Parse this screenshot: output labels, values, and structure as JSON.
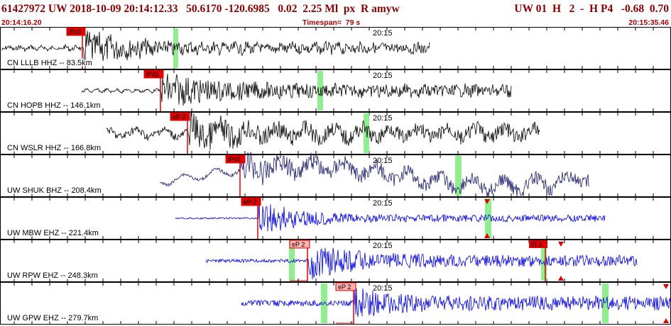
{
  "header": {
    "event_line": "61427972 UW 2018-10-09 20:14:12.33   50.6170 -120.6985   0.02  2.25 Ml  px  R amyw",
    "event_right": "UW 01  H   2  -  H P4   -0.68  0.70",
    "start_time": "20:14:16.20",
    "timespan": "Timespan=  79 s",
    "end_time": "20:15:35.46"
  },
  "minute_label": "20:15",
  "colors": {
    "header_text": "#8b0000",
    "pick_fill": "#e00000",
    "pick_light": "#ffb0b0",
    "window_bar": "#90ee90",
    "trace_black": "#000000",
    "trace_blue": "#0000e0",
    "triangle": "#e00000"
  },
  "traces": [
    {
      "label": "CN LLLB HHZ -- 83.5km",
      "color": "black",
      "pick": "iPc0",
      "pick_style": "solid"
    },
    {
      "label": "CN HOPB HHZ -- 146.1km",
      "color": "black",
      "pick": "iPd1",
      "pick_style": "solid"
    },
    {
      "label": "CN WSLR HHZ -- 166.8km",
      "color": "black",
      "pick": "eP 2",
      "pick_style": "solid"
    },
    {
      "label": "UW SHUK BHZ -- 208.4km",
      "color": "navy",
      "pick": "iPd1",
      "pick_style": "solid"
    },
    {
      "label": "UW MBW EHZ -- 221.4km",
      "color": "blue",
      "pick": "eP 2",
      "pick_style": "solid",
      "triangle": true
    },
    {
      "label": "UW RPW EHZ -- 248.3km",
      "color": "blue",
      "pick": "eP 2",
      "pick_style": "light",
      "second_pick": "iS 1",
      "triangle": true
    },
    {
      "label": "UW GPW EHZ -- 279.7km",
      "color": "blue",
      "pick": "eP 2",
      "pick_style": "light",
      "triangle": true
    }
  ]
}
